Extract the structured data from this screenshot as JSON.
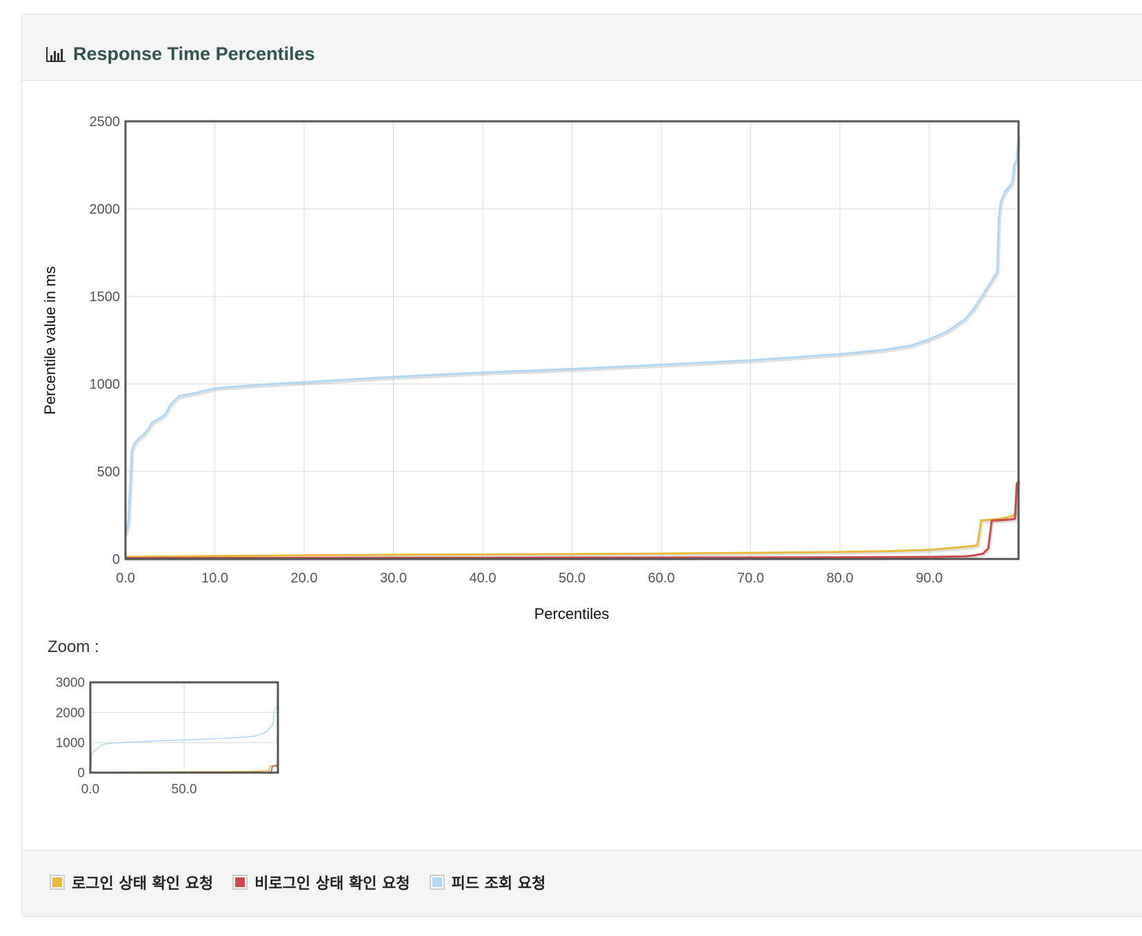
{
  "panel": {
    "title": "Response Time Percentiles",
    "title_icon": "bar-chart-icon",
    "title_color": "#31544f"
  },
  "zoom": {
    "label": "Zoom :"
  },
  "legend": [
    {
      "label": "로그인 상태 확인 요청",
      "color": "#e8b93c"
    },
    {
      "label": "비로그인 상태 확인 요청",
      "color": "#cb4b4b"
    },
    {
      "label": "피드 조회 요청",
      "color": "#afd8f8"
    }
  ],
  "chart_data": [
    {
      "type": "line",
      "title": "",
      "xlabel": "Percentiles",
      "ylabel": "Percentile value in ms",
      "xlim": [
        0,
        100
      ],
      "ylim": [
        0,
        2500
      ],
      "xticks": [
        "0.0",
        "10.0",
        "20.0",
        "30.0",
        "40.0",
        "50.0",
        "60.0",
        "70.0",
        "80.0",
        "90.0"
      ],
      "yticks": [
        "0",
        "500",
        "1000",
        "1500",
        "2000",
        "2500"
      ],
      "grid": true,
      "legend": "bottom",
      "series": [
        {
          "name": "로그인 상태 확인 요청",
          "color": "#e8b93c",
          "points": [
            [
              0,
              12
            ],
            [
              10,
              17
            ],
            [
              20,
              21
            ],
            [
              30,
              24
            ],
            [
              40,
              26
            ],
            [
              50,
              28
            ],
            [
              60,
              31
            ],
            [
              70,
              35
            ],
            [
              80,
              40
            ],
            [
              85,
              44
            ],
            [
              90,
              52
            ],
            [
              93,
              65
            ],
            [
              95,
              75
            ],
            [
              95.4,
              80
            ],
            [
              95.8,
              220
            ],
            [
              97,
              225
            ],
            [
              98,
              230
            ],
            [
              99,
              240
            ],
            [
              99.6,
              255
            ],
            [
              99.8,
              400
            ],
            [
              100,
              455
            ]
          ]
        },
        {
          "name": "비로그인 상태 확인 요청",
          "color": "#cb4b4b",
          "points": [
            [
              0,
              5
            ],
            [
              10,
              6
            ],
            [
              20,
              6
            ],
            [
              30,
              7
            ],
            [
              40,
              7
            ],
            [
              50,
              8
            ],
            [
              60,
              8
            ],
            [
              70,
              9
            ],
            [
              80,
              10
            ],
            [
              90,
              12
            ],
            [
              94,
              15
            ],
            [
              95,
              20
            ],
            [
              96,
              30
            ],
            [
              96.6,
              60
            ],
            [
              97,
              220
            ],
            [
              98,
              222
            ],
            [
              99,
              225
            ],
            [
              99.6,
              230
            ],
            [
              99.8,
              430
            ],
            [
              100,
              440
            ]
          ]
        },
        {
          "name": "피드 조회 요청",
          "color": "#afd8f8",
          "points": [
            [
              0,
              140
            ],
            [
              0.3,
              200
            ],
            [
              0.5,
              400
            ],
            [
              0.7,
              620
            ],
            [
              1,
              660
            ],
            [
              1.5,
              690
            ],
            [
              2,
              710
            ],
            [
              2.5,
              740
            ],
            [
              3,
              780
            ],
            [
              4,
              810
            ],
            [
              4.5,
              830
            ],
            [
              5,
              880
            ],
            [
              6,
              930
            ],
            [
              8,
              950
            ],
            [
              10,
              975
            ],
            [
              15,
              995
            ],
            [
              20,
              1010
            ],
            [
              30,
              1040
            ],
            [
              40,
              1065
            ],
            [
              50,
              1085
            ],
            [
              60,
              1110
            ],
            [
              70,
              1135
            ],
            [
              80,
              1170
            ],
            [
              85,
              1195
            ],
            [
              88,
              1220
            ],
            [
              90,
              1255
            ],
            [
              92,
              1300
            ],
            [
              94,
              1370
            ],
            [
              95,
              1430
            ],
            [
              96,
              1510
            ],
            [
              97,
              1590
            ],
            [
              97.6,
              1640
            ],
            [
              97.8,
              1950
            ],
            [
              98,
              2040
            ],
            [
              98.5,
              2100
            ],
            [
              99,
              2130
            ],
            [
              99.3,
              2150
            ],
            [
              99.5,
              2250
            ],
            [
              99.8,
              2280
            ],
            [
              100,
              2420
            ]
          ]
        }
      ]
    },
    {
      "type": "line",
      "title": "",
      "xlabel": "",
      "ylabel": "",
      "xlim": [
        0,
        100
      ],
      "ylim": [
        0,
        3000
      ],
      "xticks": [
        "0.0",
        "50.0"
      ],
      "yticks": [
        "0",
        "1000",
        "2000",
        "3000"
      ],
      "grid": true,
      "series_ref": "same as main chart"
    }
  ]
}
